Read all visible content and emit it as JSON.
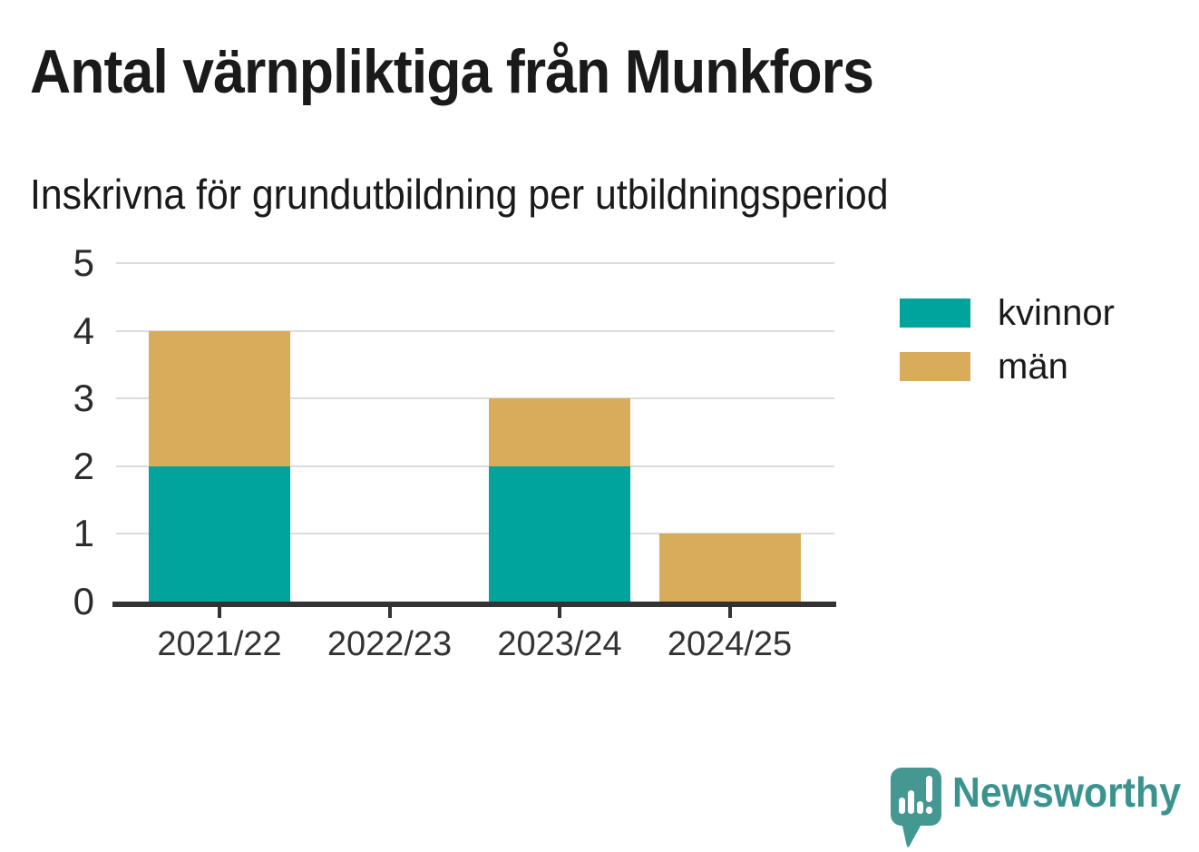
{
  "header": {
    "title": "Antal värnpliktiga från Munkfors",
    "subtitle": "Inskrivna för grundutbildning per utbildningsperiod"
  },
  "chart_data": {
    "type": "bar",
    "stacked": true,
    "title": "Antal värnpliktiga från Munkfors",
    "subtitle": "Inskrivna för grundutbildning per utbildningsperiod",
    "categories": [
      "2021/22",
      "2022/23",
      "2023/24",
      "2024/25"
    ],
    "series": [
      {
        "name": "kvinnor",
        "color": "#00a49c",
        "values": [
          2,
          0,
          2,
          0
        ]
      },
      {
        "name": "män",
        "color": "#d9ac5b",
        "values": [
          2,
          0,
          1,
          1
        ]
      }
    ],
    "totals": [
      4,
      0,
      3,
      1
    ],
    "xlabel": "",
    "ylabel": "",
    "ylim": [
      0,
      5
    ],
    "yticks": [
      0,
      1,
      2,
      3,
      4,
      5
    ],
    "grid": true,
    "legend_position": "right"
  },
  "footer": {
    "brand": "Newsworthy"
  },
  "colors": {
    "kvinnor": "#00a49c",
    "man": "#d9ac5b",
    "grid": "#dcdcdc",
    "axis": "#333333",
    "text": "#1a1a1a",
    "brand_teal": "#3b938f",
    "logo_teal": "#459792"
  }
}
